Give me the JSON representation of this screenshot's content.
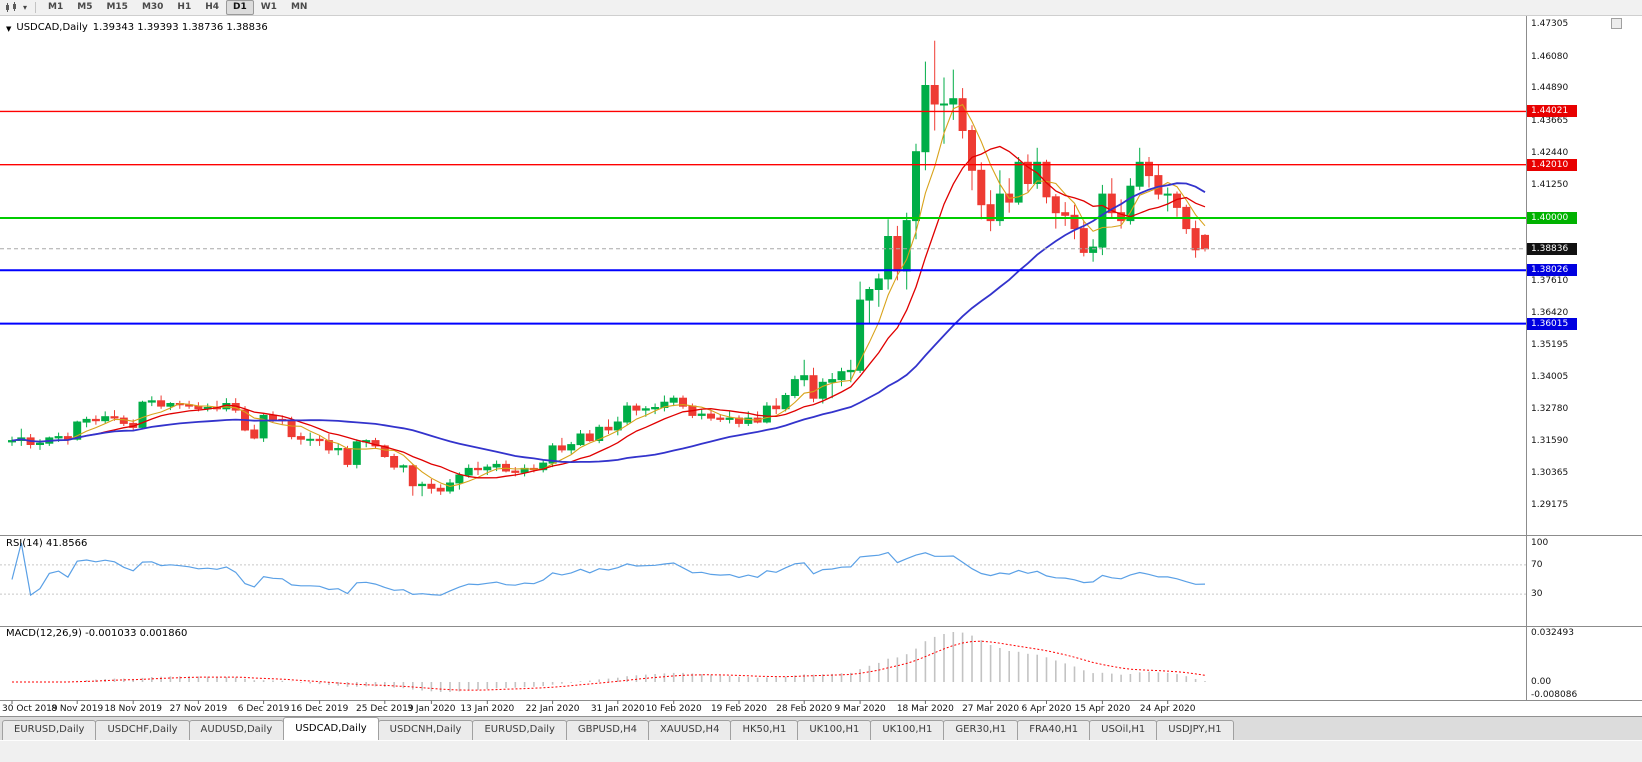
{
  "icons": {
    "marker": "▼",
    "dropdown": "▾"
  },
  "toolbar": {
    "timeframes": [
      "M1",
      "M5",
      "M15",
      "M30",
      "H1",
      "H4",
      "D1",
      "W1",
      "MN"
    ],
    "active_timeframe": "D1"
  },
  "chart": {
    "symbol": "USDCAD,Daily",
    "ohlc_text": "1.39343 1.39393 1.38736 1.38836",
    "colors": {
      "bull": "#00ad47",
      "bear": "#ee3b33",
      "ma_fast": "#d8a21a",
      "ma_mid": "#e00000",
      "ma_slow": "#3333cc",
      "bg": "#ffffff"
    },
    "price_axis_ticks": [
      "1.47305",
      "1.46080",
      "1.44890",
      "1.43665",
      "1.42440",
      "1.41250",
      "1.37610",
      "1.36420",
      "1.35195",
      "1.34005",
      "1.32780",
      "1.31590",
      "1.30365",
      "1.29175"
    ],
    "price_badges": [
      {
        "text": "1.44021",
        "price": 1.44021,
        "bg": "#e80000"
      },
      {
        "text": "1.42010",
        "price": 1.4201,
        "bg": "#e80000"
      },
      {
        "text": "1.40000",
        "price": 1.4,
        "bg": "#00b200"
      },
      {
        "text": "1.38836",
        "price": 1.38836,
        "bg": "#111111"
      },
      {
        "text": "1.38026",
        "price": 1.38026,
        "bg": "#0000e0"
      },
      {
        "text": "1.36015",
        "price": 1.36015,
        "bg": "#0000e0"
      }
    ],
    "hlines": [
      {
        "price": 1.44021,
        "color": "#ff0000",
        "width": 1.4
      },
      {
        "price": 1.4201,
        "color": "#ff0000",
        "width": 1.4
      },
      {
        "price": 1.4,
        "color": "#00cc00",
        "width": 2
      },
      {
        "price": 1.38026,
        "color": "#0000ff",
        "width": 2
      },
      {
        "price": 1.36015,
        "color": "#0000ff",
        "width": 2
      }
    ],
    "current_price_line": {
      "price": 1.38836,
      "color": "#a8a8a8"
    }
  },
  "rsi": {
    "label": "RSI(14) 41.8566",
    "period": 14,
    "current": 41.8566,
    "color": "#5aa0e6",
    "axis": [
      {
        "text": "100",
        "value": 100
      },
      {
        "text": "70",
        "value": 70
      },
      {
        "text": "30",
        "value": 30
      }
    ],
    "levels": [
      70,
      30
    ]
  },
  "macd": {
    "label": "MACD(12,26,9) -0.001033 0.001860",
    "current_main": -0.001033,
    "current_signal": 0.00186,
    "hist_color": "#c3c3c3",
    "signal_color": "#ff0000",
    "axis": [
      {
        "text": "0.032493",
        "value": 0.032493
      },
      {
        "text": "0.00",
        "value": 0
      },
      {
        "text": "-0.008086",
        "value": -0.008086
      }
    ]
  },
  "time_axis": {
    "labels": [
      {
        "text": "30 Oct 2019",
        "bar": 0
      },
      {
        "text": "8 Nov 2019",
        "bar": 7
      },
      {
        "text": "18 Nov 2019",
        "bar": 13
      },
      {
        "text": "27 Nov 2019",
        "bar": 20
      },
      {
        "text": "6 Dec 2019",
        "bar": 27
      },
      {
        "text": "16 Dec 2019",
        "bar": 33
      },
      {
        "text": "25 Dec 2019",
        "bar": 40
      },
      {
        "text": "3 Jan 2020",
        "bar": 45
      },
      {
        "text": "13 Jan 2020",
        "bar": 51
      },
      {
        "text": "22 Jan 2020",
        "bar": 58
      },
      {
        "text": "31 Jan 2020",
        "bar": 65
      },
      {
        "text": "10 Feb 2020",
        "bar": 71
      },
      {
        "text": "19 Feb 2020",
        "bar": 78
      },
      {
        "text": "28 Feb 2020",
        "bar": 85
      },
      {
        "text": "9 Mar 2020",
        "bar": 91
      },
      {
        "text": "18 Mar 2020",
        "bar": 98
      },
      {
        "text": "27 Mar 2020",
        "bar": 105
      },
      {
        "text": "6 Apr 2020",
        "bar": 111
      },
      {
        "text": "15 Apr 2020",
        "bar": 117
      },
      {
        "text": "24 Apr 2020",
        "bar": 124
      }
    ]
  },
  "tabs": {
    "items": [
      "EURUSD,Daily",
      "USDCHF,Daily",
      "AUDUSD,Daily",
      "USDCAD,Daily",
      "USDCNH,Daily",
      "EURUSD,Daily",
      "GBPUSD,H4",
      "XAUUSD,H4",
      "HK50,H1",
      "UK100,H1",
      "UK100,H1",
      "GER30,H1",
      "FRA40,H1",
      "USOil,H1",
      "USDJPY,H1"
    ],
    "active_index": 3
  },
  "chart_data": {
    "type": "candlestick",
    "symbol": "USDCAD",
    "timeframe": "Daily",
    "y_axis_range": [
      1.288,
      1.4765
    ],
    "overlays": [
      {
        "name": "ma-fast",
        "type": "sma",
        "period": 5,
        "color": "#d8a21a"
      },
      {
        "name": "ma-mid",
        "type": "sma",
        "period": 10,
        "color": "#e00000"
      },
      {
        "name": "ma-slow",
        "type": "sma",
        "period": 30,
        "color": "#3333cc"
      }
    ],
    "indicators": [
      {
        "name": "RSI",
        "period": 14,
        "current": 41.8566
      },
      {
        "name": "MACD",
        "fast": 12,
        "slow": 26,
        "signal": 9,
        "current_main": -0.001033,
        "current_signal": 0.00186
      }
    ],
    "ohlc": [
      [
        1.3155,
        1.3175,
        1.314,
        1.316
      ],
      [
        1.316,
        1.3205,
        1.314,
        1.317
      ],
      [
        1.317,
        1.3185,
        1.313,
        1.3145
      ],
      [
        1.3145,
        1.3165,
        1.3125,
        1.315
      ],
      [
        1.315,
        1.3175,
        1.314,
        1.317
      ],
      [
        1.317,
        1.319,
        1.3155,
        1.3175
      ],
      [
        1.3175,
        1.319,
        1.3145,
        1.3165
      ],
      [
        1.3165,
        1.3235,
        1.316,
        1.323
      ],
      [
        1.323,
        1.325,
        1.321,
        1.324
      ],
      [
        1.324,
        1.3255,
        1.322,
        1.3235
      ],
      [
        1.3235,
        1.327,
        1.3225,
        1.325
      ],
      [
        1.325,
        1.3275,
        1.3235,
        1.3245
      ],
      [
        1.3245,
        1.3255,
        1.3215,
        1.3225
      ],
      [
        1.3225,
        1.324,
        1.32,
        1.321
      ],
      [
        1.321,
        1.331,
        1.3205,
        1.3305
      ],
      [
        1.3305,
        1.3327,
        1.329,
        1.331
      ],
      [
        1.331,
        1.333,
        1.328,
        1.329
      ],
      [
        1.329,
        1.3305,
        1.3275,
        1.33
      ],
      [
        1.33,
        1.331,
        1.328,
        1.3295
      ],
      [
        1.3295,
        1.331,
        1.328,
        1.329
      ],
      [
        1.329,
        1.3305,
        1.327,
        1.328
      ],
      [
        1.328,
        1.33,
        1.327,
        1.3285
      ],
      [
        1.3285,
        1.331,
        1.327,
        1.328
      ],
      [
        1.328,
        1.332,
        1.327,
        1.33
      ],
      [
        1.33,
        1.332,
        1.3265,
        1.3275
      ],
      [
        1.3275,
        1.329,
        1.3195,
        1.32
      ],
      [
        1.32,
        1.322,
        1.3165,
        1.317
      ],
      [
        1.317,
        1.326,
        1.3155,
        1.3255
      ],
      [
        1.3255,
        1.327,
        1.323,
        1.324
      ],
      [
        1.324,
        1.3255,
        1.322,
        1.3235
      ],
      [
        1.3235,
        1.325,
        1.3165,
        1.3175
      ],
      [
        1.3175,
        1.319,
        1.3145,
        1.3165
      ],
      [
        1.3165,
        1.319,
        1.314,
        1.3165
      ],
      [
        1.3165,
        1.318,
        1.314,
        1.316
      ],
      [
        1.316,
        1.3185,
        1.311,
        1.3125
      ],
      [
        1.3125,
        1.315,
        1.3105,
        1.313
      ],
      [
        1.313,
        1.314,
        1.306,
        1.307
      ],
      [
        1.307,
        1.3165,
        1.3055,
        1.3155
      ],
      [
        1.3155,
        1.3165,
        1.3135,
        1.316
      ],
      [
        1.316,
        1.317,
        1.313,
        1.314
      ],
      [
        1.314,
        1.3145,
        1.3095,
        1.31
      ],
      [
        1.31,
        1.311,
        1.305,
        1.306
      ],
      [
        1.306,
        1.307,
        1.304,
        1.3065
      ],
      [
        1.3065,
        1.307,
        1.2952,
        1.299
      ],
      [
        1.299,
        1.3005,
        1.295,
        1.2995
      ],
      [
        1.2995,
        1.3015,
        1.296,
        1.298
      ],
      [
        1.298,
        1.2995,
        1.2955,
        1.297
      ],
      [
        1.297,
        1.3015,
        1.296,
        1.3
      ],
      [
        1.3,
        1.304,
        1.2975,
        1.303
      ],
      [
        1.303,
        1.307,
        1.302,
        1.3055
      ],
      [
        1.3055,
        1.308,
        1.303,
        1.305
      ],
      [
        1.305,
        1.307,
        1.303,
        1.306
      ],
      [
        1.306,
        1.3085,
        1.3045,
        1.307
      ],
      [
        1.307,
        1.3085,
        1.304,
        1.3045
      ],
      [
        1.3045,
        1.306,
        1.3025,
        1.304
      ],
      [
        1.304,
        1.307,
        1.3025,
        1.3055
      ],
      [
        1.3055,
        1.307,
        1.304,
        1.305
      ],
      [
        1.305,
        1.3085,
        1.304,
        1.3075
      ],
      [
        1.3075,
        1.315,
        1.306,
        1.314
      ],
      [
        1.314,
        1.317,
        1.3115,
        1.3125
      ],
      [
        1.3125,
        1.3155,
        1.311,
        1.3145
      ],
      [
        1.3145,
        1.32,
        1.314,
        1.3185
      ],
      [
        1.3185,
        1.32,
        1.3155,
        1.316
      ],
      [
        1.316,
        1.322,
        1.315,
        1.321
      ],
      [
        1.321,
        1.324,
        1.3185,
        1.32
      ],
      [
        1.32,
        1.325,
        1.318,
        1.323
      ],
      [
        1.323,
        1.3305,
        1.322,
        1.329
      ],
      [
        1.329,
        1.33,
        1.3255,
        1.3275
      ],
      [
        1.3275,
        1.329,
        1.325,
        1.328
      ],
      [
        1.328,
        1.33,
        1.326,
        1.3285
      ],
      [
        1.3285,
        1.333,
        1.327,
        1.3305
      ],
      [
        1.3305,
        1.333,
        1.329,
        1.332
      ],
      [
        1.332,
        1.333,
        1.328,
        1.329
      ],
      [
        1.329,
        1.33,
        1.3245,
        1.3255
      ],
      [
        1.3255,
        1.328,
        1.324,
        1.326
      ],
      [
        1.326,
        1.3275,
        1.3235,
        1.3245
      ],
      [
        1.3245,
        1.326,
        1.323,
        1.324
      ],
      [
        1.324,
        1.327,
        1.3225,
        1.3245
      ],
      [
        1.3245,
        1.3255,
        1.321,
        1.3225
      ],
      [
        1.3225,
        1.327,
        1.3215,
        1.3245
      ],
      [
        1.3245,
        1.327,
        1.3225,
        1.323
      ],
      [
        1.323,
        1.3305,
        1.3225,
        1.329
      ],
      [
        1.329,
        1.332,
        1.326,
        1.328
      ],
      [
        1.328,
        1.334,
        1.327,
        1.333
      ],
      [
        1.333,
        1.3405,
        1.332,
        1.339
      ],
      [
        1.339,
        1.3465,
        1.3365,
        1.3405
      ],
      [
        1.3405,
        1.3435,
        1.3305,
        1.332
      ],
      [
        1.332,
        1.3395,
        1.33,
        1.338
      ],
      [
        1.338,
        1.3415,
        1.332,
        1.339
      ],
      [
        1.339,
        1.3435,
        1.3365,
        1.342
      ],
      [
        1.342,
        1.3465,
        1.338,
        1.3425
      ],
      [
        1.3425,
        1.376,
        1.3415,
        1.369
      ],
      [
        1.369,
        1.374,
        1.36,
        1.373
      ],
      [
        1.373,
        1.379,
        1.3665,
        1.377
      ],
      [
        1.377,
        1.3995,
        1.373,
        1.393
      ],
      [
        1.393,
        1.397,
        1.3765,
        1.38
      ],
      [
        1.38,
        1.402,
        1.373,
        1.399
      ],
      [
        1.399,
        1.428,
        1.392,
        1.425
      ],
      [
        1.425,
        1.459,
        1.418,
        1.45
      ],
      [
        1.45,
        1.4669,
        1.433,
        1.443
      ],
      [
        1.443,
        1.453,
        1.428,
        1.443
      ],
      [
        1.443,
        1.456,
        1.437,
        1.445
      ],
      [
        1.445,
        1.449,
        1.43,
        1.433
      ],
      [
        1.433,
        1.435,
        1.4105,
        1.418
      ],
      [
        1.418,
        1.421,
        1.3995,
        1.405
      ],
      [
        1.405,
        1.4105,
        1.395,
        1.399
      ],
      [
        1.399,
        1.418,
        1.397,
        1.409
      ],
      [
        1.409,
        1.415,
        1.402,
        1.406
      ],
      [
        1.406,
        1.423,
        1.405,
        1.421
      ],
      [
        1.421,
        1.424,
        1.41,
        1.413
      ],
      [
        1.413,
        1.4265,
        1.411,
        1.421
      ],
      [
        1.421,
        1.422,
        1.4055,
        1.408
      ],
      [
        1.408,
        1.409,
        1.396,
        1.402
      ],
      [
        1.402,
        1.406,
        1.397,
        1.401
      ],
      [
        1.401,
        1.405,
        1.392,
        1.396
      ],
      [
        1.396,
        1.399,
        1.3855,
        1.387
      ],
      [
        1.387,
        1.392,
        1.3835,
        1.389
      ],
      [
        1.389,
        1.4125,
        1.386,
        1.409
      ],
      [
        1.409,
        1.415,
        1.4,
        1.402
      ],
      [
        1.402,
        1.407,
        1.396,
        1.399
      ],
      [
        1.399,
        1.415,
        1.3975,
        1.412
      ],
      [
        1.412,
        1.4265,
        1.4105,
        1.421
      ],
      [
        1.421,
        1.423,
        1.4115,
        1.416
      ],
      [
        1.416,
        1.42,
        1.407,
        1.409
      ],
      [
        1.409,
        1.4115,
        1.4025,
        1.409
      ],
      [
        1.409,
        1.41,
        1.4005,
        1.404
      ],
      [
        1.404,
        1.405,
        1.394,
        1.396
      ],
      [
        1.396,
        1.399,
        1.385,
        1.388
      ],
      [
        1.39343,
        1.39393,
        1.38736,
        1.38836
      ]
    ]
  }
}
